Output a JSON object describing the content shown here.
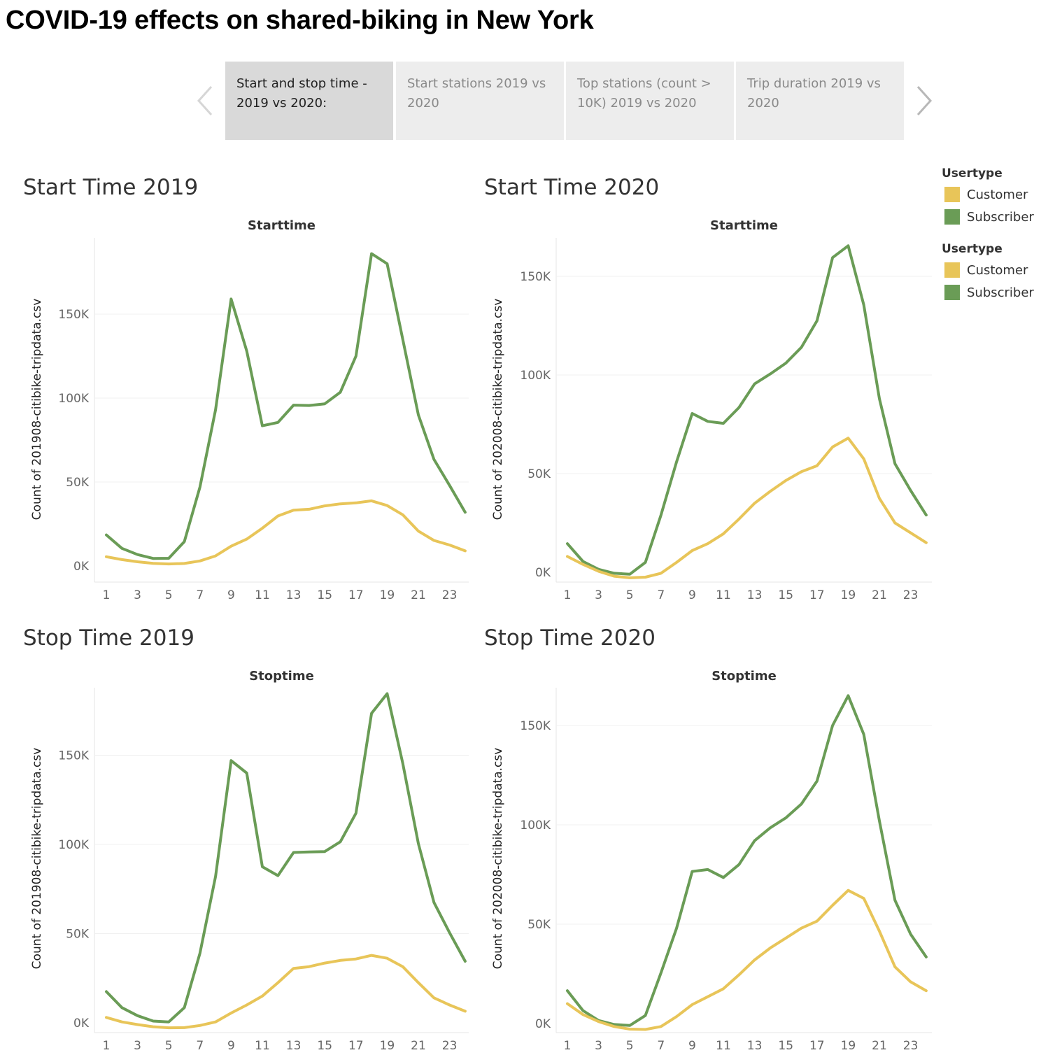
{
  "story": {
    "title": "COVID-19 effects on shared-biking in New York",
    "tabs": [
      {
        "label_line1": "Start and stop time -",
        "label_line2": "2019 vs 2020:",
        "active": true
      },
      {
        "label_line1": "Start stations 2019 vs",
        "label_line2": "2020",
        "active": false
      },
      {
        "label_line1": "Top stations (count >",
        "label_line2": "10K) 2019 vs 2020",
        "active": false
      },
      {
        "label_line1": "Trip duration 2019 vs",
        "label_line2": "2020",
        "active": false
      }
    ],
    "prev_icon": "chevron-left-icon",
    "next_icon": "chevron-right-icon"
  },
  "legends": [
    {
      "title": "Usertype",
      "items": [
        {
          "label": "Customer",
          "color": "#e8c559"
        },
        {
          "label": "Subscriber",
          "color": "#6a9c56"
        }
      ]
    },
    {
      "title": "Usertype",
      "items": [
        {
          "label": "Customer",
          "color": "#e8c559"
        },
        {
          "label": "Subscriber",
          "color": "#6a9c56"
        }
      ]
    }
  ],
  "sheets": [
    {
      "title": "Start Time 2019"
    },
    {
      "title": "Start Time 2020"
    },
    {
      "title": "Stop Time 2019"
    },
    {
      "title": "Stop Time 2020"
    }
  ],
  "chart_data": [
    {
      "type": "line",
      "title": "Start Time 2019",
      "xlabel": "Starttime",
      "ylabel": "Count of 201908-citibike-tripdata.csv",
      "x": [
        1,
        2,
        3,
        4,
        5,
        6,
        7,
        8,
        9,
        10,
        11,
        12,
        13,
        14,
        15,
        16,
        17,
        18,
        19,
        20,
        21,
        22,
        23,
        24
      ],
      "xticks": [
        1,
        3,
        5,
        7,
        9,
        11,
        13,
        15,
        17,
        19,
        21,
        23
      ],
      "yticks": [
        0,
        50000,
        100000,
        150000
      ],
      "ytick_labels": [
        "0K",
        "50K",
        "100K",
        "150K"
      ],
      "ylim": [
        -3000,
        196000
      ],
      "series": [
        {
          "name": "Subscriber",
          "color": "#6a9c56",
          "values": [
            18500,
            10500,
            6800,
            4500,
            4600,
            14500,
            47000,
            93000,
            159000,
            128000,
            83500,
            85500,
            95800,
            95600,
            96600,
            103500,
            125000,
            186000,
            180000,
            135000,
            90000,
            63500,
            48000,
            32000
          ]
        },
        {
          "name": "Customer",
          "color": "#e8c559",
          "values": [
            5500,
            3800,
            2500,
            1600,
            1200,
            1500,
            3000,
            6000,
            11800,
            16000,
            22500,
            29800,
            33200,
            33800,
            35800,
            37000,
            37600,
            38800,
            36000,
            30500,
            20800,
            15200,
            12500,
            9000
          ]
        }
      ]
    },
    {
      "type": "line",
      "title": "Start Time 2020",
      "xlabel": "Starttime",
      "ylabel": "Count of 202008-citibike-tripdata.csv",
      "x": [
        1,
        2,
        3,
        4,
        5,
        6,
        7,
        8,
        9,
        10,
        11,
        12,
        13,
        14,
        15,
        16,
        17,
        18,
        19,
        20,
        21,
        22,
        23,
        24
      ],
      "xticks": [
        1,
        3,
        5,
        7,
        9,
        11,
        13,
        15,
        17,
        19,
        21,
        23
      ],
      "yticks": [
        0,
        50000,
        100000,
        150000
      ],
      "ytick_labels": [
        "0K",
        "50K",
        "100K",
        "150K"
      ],
      "ylim": [
        -3000,
        170000
      ],
      "series": [
        {
          "name": "Subscriber",
          "color": "#6a9c56",
          "values": [
            14500,
            5500,
            1500,
            -500,
            -1000,
            5000,
            29000,
            56000,
            80500,
            76500,
            75500,
            83500,
            95500,
            100500,
            106000,
            114000,
            127500,
            159500,
            165500,
            135500,
            88000,
            55000,
            41500,
            29000
          ]
        },
        {
          "name": "Customer",
          "color": "#e8c559",
          "values": [
            8000,
            4000,
            500,
            -2000,
            -2800,
            -2500,
            -500,
            5000,
            11000,
            14500,
            19500,
            27000,
            35000,
            41000,
            46500,
            51000,
            54000,
            63500,
            68000,
            57500,
            37500,
            25000,
            20000,
            15000
          ]
        }
      ]
    },
    {
      "type": "line",
      "title": "Stop Time 2019",
      "xlabel": "Stoptime",
      "ylabel": "Count of 201908-citibike-tripdata.csv",
      "x": [
        1,
        2,
        3,
        4,
        5,
        6,
        7,
        8,
        9,
        10,
        11,
        12,
        13,
        14,
        15,
        16,
        17,
        18,
        19,
        20,
        21,
        22,
        23,
        24
      ],
      "xticks": [
        1,
        3,
        5,
        7,
        9,
        11,
        13,
        15,
        17,
        19,
        21,
        23
      ],
      "yticks": [
        0,
        50000,
        100000,
        150000
      ],
      "ytick_labels": [
        "0K",
        "50K",
        "100K",
        "150K"
      ],
      "ylim": [
        -3000,
        188000
      ],
      "series": [
        {
          "name": "Subscriber",
          "color": "#6a9c56",
          "values": [
            17500,
            8500,
            4000,
            1000,
            500,
            8500,
            39000,
            82000,
            147000,
            140000,
            87500,
            82500,
            95500,
            95800,
            96000,
            101500,
            117500,
            173500,
            184500,
            145500,
            100500,
            67500,
            50500,
            34500
          ]
        },
        {
          "name": "Customer",
          "color": "#e8c559",
          "values": [
            3000,
            500,
            -1000,
            -2200,
            -2800,
            -2700,
            -1500,
            500,
            5500,
            10000,
            15000,
            22500,
            30500,
            31500,
            33500,
            35000,
            35800,
            37800,
            36200,
            31500,
            22500,
            14000,
            10000,
            6500
          ]
        }
      ]
    },
    {
      "type": "line",
      "title": "Stop Time 2020",
      "xlabel": "Stoptime",
      "ylabel": "Count of 202008-citibike-tripdata.csv",
      "x": [
        1,
        2,
        3,
        4,
        5,
        6,
        7,
        8,
        9,
        10,
        11,
        12,
        13,
        14,
        15,
        16,
        17,
        18,
        19,
        20,
        21,
        22,
        23,
        24
      ],
      "xticks": [
        1,
        3,
        5,
        7,
        9,
        11,
        13,
        15,
        17,
        19,
        21,
        23
      ],
      "yticks": [
        0,
        50000,
        100000,
        150000
      ],
      "ytick_labels": [
        "0K",
        "50K",
        "100K",
        "150K"
      ],
      "ylim": [
        -3000,
        168000
      ],
      "series": [
        {
          "name": "Subscriber",
          "color": "#6a9c56",
          "values": [
            16500,
            6500,
            1500,
            -500,
            -1000,
            4000,
            25500,
            48000,
            76500,
            77500,
            73500,
            80000,
            92000,
            98500,
            103500,
            110500,
            122000,
            150000,
            165000,
            145500,
            102000,
            62000,
            45000,
            33500
          ]
        },
        {
          "name": "Customer",
          "color": "#e8c559",
          "values": [
            10000,
            4500,
            1000,
            -1500,
            -2800,
            -3000,
            -1500,
            3500,
            9500,
            13500,
            17500,
            24500,
            32000,
            38000,
            43000,
            48000,
            51500,
            59500,
            67000,
            63000,
            46500,
            28500,
            21000,
            16500
          ]
        }
      ]
    }
  ]
}
